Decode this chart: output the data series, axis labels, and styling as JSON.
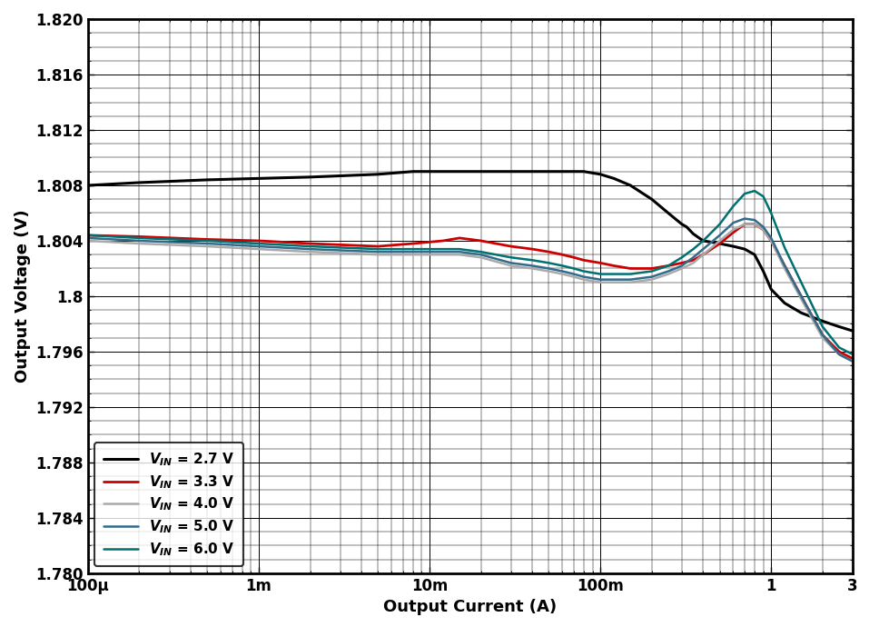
{
  "xlabel": "Output Current (A)",
  "ylabel": "Output Voltage (V)",
  "xlim_log": [
    -4,
    0.477
  ],
  "ylim": [
    1.78,
    1.82
  ],
  "yticks": [
    1.78,
    1.784,
    1.788,
    1.792,
    1.796,
    1.8,
    1.804,
    1.808,
    1.812,
    1.816,
    1.82
  ],
  "xtick_positions": [
    0.0001,
    0.001,
    0.01,
    0.1,
    1.0,
    3.0
  ],
  "xtick_labels": [
    "100μ",
    "1m",
    "10m",
    "100m",
    "1",
    "3"
  ],
  "line_colors": [
    "#000000",
    "#cc0000",
    "#aaaaaa",
    "#336b8a",
    "#007070"
  ],
  "line_widths": [
    2.2,
    2.0,
    1.8,
    1.8,
    1.8
  ],
  "legend_labels": [
    "V_{IN} = 2.7 V",
    "V_{IN} = 3.3 V",
    "V_{IN} = 4.0 V",
    "V_{IN} = 5.0 V",
    "V_{IN} = 6.0 V"
  ],
  "background_color": "#ffffff",
  "series_x": [
    [
      0.0001,
      0.0002,
      0.0005,
      0.001,
      0.002,
      0.005,
      0.008,
      0.012,
      0.015,
      0.02,
      0.03,
      0.04,
      0.05,
      0.06,
      0.07,
      0.08,
      0.1,
      0.12,
      0.15,
      0.2,
      0.25,
      0.28,
      0.3,
      0.32,
      0.35,
      0.4,
      0.5,
      0.6,
      0.7,
      0.8,
      0.9,
      1.0,
      1.2,
      1.5,
      2.0,
      2.5,
      3.0
    ],
    [
      0.0001,
      0.0002,
      0.0005,
      0.001,
      0.002,
      0.005,
      0.008,
      0.012,
      0.015,
      0.02,
      0.03,
      0.04,
      0.05,
      0.06,
      0.07,
      0.08,
      0.1,
      0.12,
      0.15,
      0.2,
      0.25,
      0.3,
      0.35,
      0.4,
      0.5,
      0.6,
      0.7,
      0.8,
      0.9,
      1.0,
      1.2,
      1.5,
      2.0,
      2.5,
      3.0
    ],
    [
      0.0001,
      0.0002,
      0.0005,
      0.001,
      0.002,
      0.005,
      0.008,
      0.012,
      0.015,
      0.02,
      0.03,
      0.04,
      0.05,
      0.06,
      0.07,
      0.08,
      0.1,
      0.12,
      0.15,
      0.2,
      0.25,
      0.3,
      0.35,
      0.4,
      0.5,
      0.6,
      0.7,
      0.8,
      0.9,
      1.0,
      1.2,
      1.5,
      2.0,
      2.5,
      3.0
    ],
    [
      0.0001,
      0.0002,
      0.0005,
      0.001,
      0.002,
      0.005,
      0.008,
      0.012,
      0.015,
      0.02,
      0.03,
      0.04,
      0.05,
      0.06,
      0.07,
      0.08,
      0.1,
      0.12,
      0.15,
      0.2,
      0.25,
      0.3,
      0.35,
      0.4,
      0.5,
      0.6,
      0.7,
      0.8,
      0.9,
      1.0,
      1.2,
      1.5,
      2.0,
      2.5,
      3.0
    ],
    [
      0.0001,
      0.0002,
      0.0005,
      0.001,
      0.002,
      0.005,
      0.008,
      0.012,
      0.015,
      0.02,
      0.03,
      0.04,
      0.05,
      0.06,
      0.07,
      0.08,
      0.1,
      0.12,
      0.15,
      0.2,
      0.25,
      0.3,
      0.35,
      0.4,
      0.5,
      0.6,
      0.7,
      0.8,
      0.9,
      1.0,
      1.2,
      1.5,
      2.0,
      2.5,
      3.0
    ]
  ],
  "series_y": [
    [
      1.808,
      1.8082,
      1.8084,
      1.8085,
      1.8086,
      1.8088,
      1.809,
      1.809,
      1.809,
      1.809,
      1.809,
      1.809,
      1.809,
      1.809,
      1.809,
      1.809,
      1.8088,
      1.8085,
      1.808,
      1.807,
      1.806,
      1.8055,
      1.8052,
      1.805,
      1.8045,
      1.804,
      1.8038,
      1.8036,
      1.8034,
      1.803,
      1.8018,
      1.8005,
      1.7995,
      1.7988,
      1.7982,
      1.7978,
      1.7975
    ],
    [
      1.8044,
      1.8043,
      1.8041,
      1.804,
      1.8038,
      1.8036,
      1.8038,
      1.804,
      1.8042,
      1.804,
      1.8036,
      1.8034,
      1.8032,
      1.803,
      1.8028,
      1.8026,
      1.8024,
      1.8022,
      1.802,
      1.802,
      1.8022,
      1.8024,
      1.8026,
      1.803,
      1.8038,
      1.8046,
      1.8052,
      1.8052,
      1.8048,
      1.804,
      1.8022,
      1.8,
      1.7972,
      1.796,
      1.7955
    ],
    [
      1.804,
      1.8038,
      1.8036,
      1.8034,
      1.8032,
      1.803,
      1.803,
      1.803,
      1.803,
      1.8028,
      1.8022,
      1.802,
      1.8018,
      1.8016,
      1.8014,
      1.8012,
      1.801,
      1.801,
      1.801,
      1.8012,
      1.8016,
      1.802,
      1.8024,
      1.803,
      1.804,
      1.8048,
      1.8052,
      1.8052,
      1.8048,
      1.804,
      1.802,
      1.7998,
      1.797,
      1.7958,
      1.7953
    ],
    [
      1.8042,
      1.804,
      1.8038,
      1.8036,
      1.8034,
      1.8032,
      1.8032,
      1.8032,
      1.8032,
      1.803,
      1.8024,
      1.8022,
      1.802,
      1.8018,
      1.8016,
      1.8014,
      1.8012,
      1.8012,
      1.8012,
      1.8014,
      1.8018,
      1.8022,
      1.8028,
      1.8034,
      1.8044,
      1.8053,
      1.8056,
      1.8055,
      1.805,
      1.8042,
      1.8022,
      1.8,
      1.7972,
      1.7958,
      1.7953
    ],
    [
      1.8044,
      1.8042,
      1.804,
      1.8038,
      1.8036,
      1.8034,
      1.8034,
      1.8034,
      1.8034,
      1.8032,
      1.8028,
      1.8026,
      1.8024,
      1.8022,
      1.802,
      1.8018,
      1.8016,
      1.8016,
      1.8016,
      1.8018,
      1.8022,
      1.8028,
      1.8034,
      1.804,
      1.8052,
      1.8065,
      1.8074,
      1.8076,
      1.8072,
      1.806,
      1.8035,
      1.801,
      1.7978,
      1.7963,
      1.7958
    ]
  ]
}
